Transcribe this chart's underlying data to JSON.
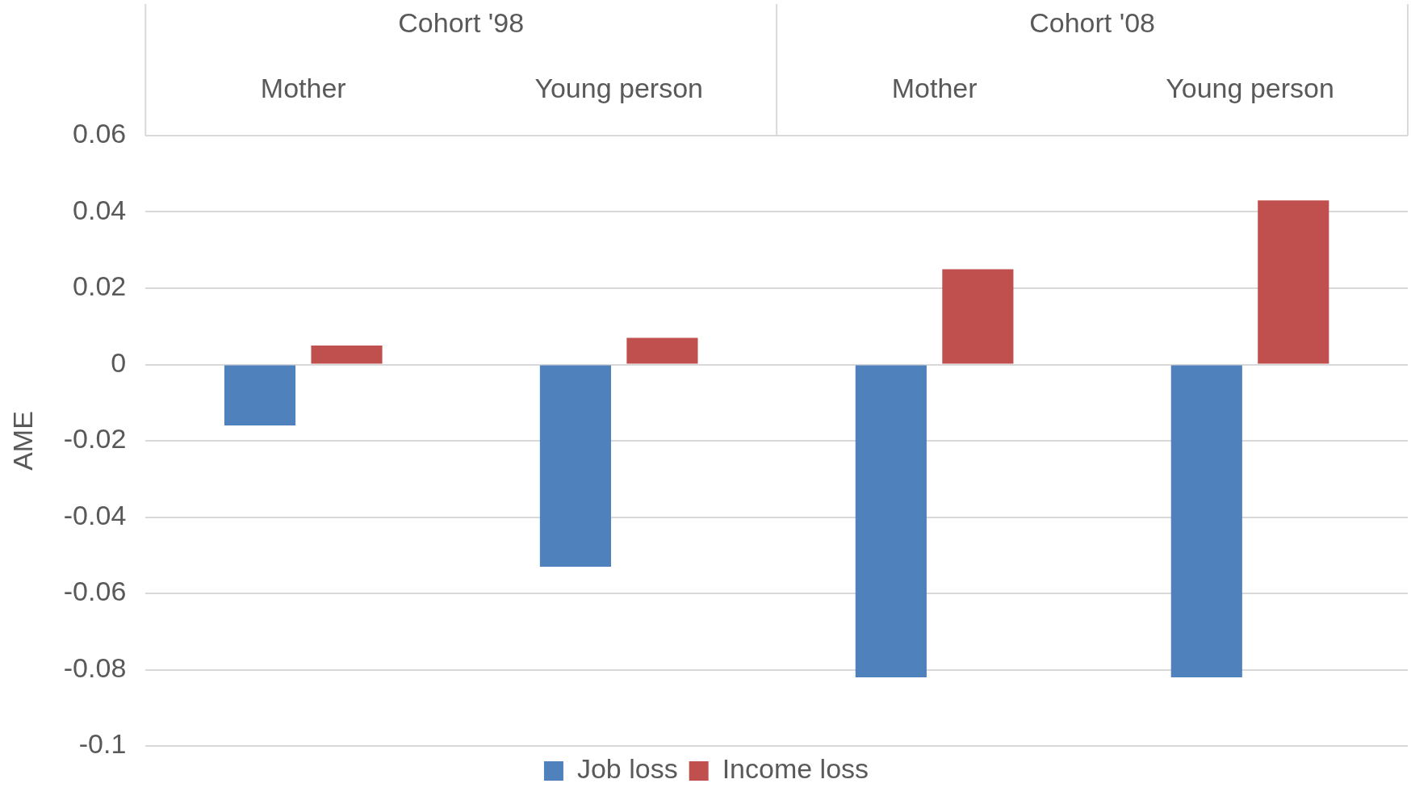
{
  "chart_data": {
    "type": "bar",
    "ylabel": "AME",
    "categories": [
      "Mother",
      "Young person",
      "Mother",
      "Young person"
    ],
    "annotations": [
      "Cohort '98",
      "Cohort '08"
    ],
    "series": [
      {
        "name": "Job loss",
        "color": "#4f81bd",
        "values": [
          -0.016,
          -0.053,
          -0.082,
          -0.082
        ]
      },
      {
        "name": "Income loss",
        "color": "#c0504d",
        "values": [
          0.005,
          0.007,
          0.025,
          0.043
        ]
      }
    ],
    "ylim": [
      -0.1,
      0.06
    ],
    "yticks": [
      -0.1,
      -0.08,
      -0.06,
      -0.04,
      -0.02,
      0,
      0.02,
      0.04,
      0.06
    ],
    "grid": "y",
    "legend": "bottom"
  }
}
